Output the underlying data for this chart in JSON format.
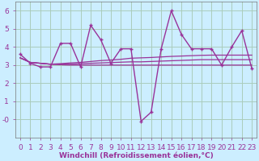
{
  "xlabel": "Windchill (Refroidissement éolien,°C)",
  "background_color": "#cceeff",
  "grid_color": "#aaccbb",
  "line_color": "#993399",
  "x_hours": [
    0,
    1,
    2,
    3,
    4,
    5,
    6,
    7,
    8,
    9,
    10,
    11,
    12,
    13,
    14,
    15,
    16,
    17,
    18,
    19,
    20,
    21,
    22,
    23
  ],
  "main_line": [
    3.6,
    3.1,
    2.9,
    2.9,
    4.2,
    4.2,
    2.9,
    5.2,
    4.4,
    3.1,
    3.9,
    3.9,
    -0.1,
    0.4,
    3.9,
    6.0,
    4.7,
    3.9,
    3.9,
    3.9,
    3.0,
    4.0,
    4.9,
    2.8
  ],
  "trend_line1": [
    3.4,
    3.15,
    3.1,
    3.05,
    3.02,
    3.0,
    3.0,
    3.0,
    3.0,
    3.0,
    3.0,
    3.0,
    3.0,
    3.0,
    3.0,
    3.0,
    3.0,
    3.0,
    3.0,
    3.0,
    3.0,
    3.0,
    3.0,
    3.0
  ],
  "trend_line2": [
    3.4,
    3.15,
    3.1,
    3.05,
    3.05,
    3.05,
    3.08,
    3.1,
    3.12,
    3.14,
    3.16,
    3.18,
    3.18,
    3.2,
    3.22,
    3.24,
    3.26,
    3.28,
    3.3,
    3.3,
    3.3,
    3.3,
    3.3,
    3.3
  ],
  "trend_line3": [
    3.4,
    3.15,
    3.1,
    3.05,
    3.08,
    3.12,
    3.15,
    3.2,
    3.25,
    3.28,
    3.32,
    3.38,
    3.4,
    3.42,
    3.45,
    3.48,
    3.5,
    3.52,
    3.54,
    3.55,
    3.55,
    3.55,
    3.55,
    3.55
  ],
  "ylim": [
    -1,
    6.5
  ],
  "yticks": [
    0,
    1,
    2,
    3,
    4,
    5,
    6
  ],
  "ytick_labels": [
    "-0",
    "1",
    "2",
    "3",
    "4",
    "5",
    "6"
  ],
  "xlim": [
    -0.5,
    23.5
  ],
  "xticks": [
    0,
    1,
    2,
    3,
    4,
    5,
    6,
    7,
    8,
    9,
    10,
    11,
    12,
    13,
    14,
    15,
    16,
    17,
    18,
    19,
    20,
    21,
    22,
    23
  ],
  "xlabel_fontsize": 6.5,
  "tick_fontsize": 6.5
}
